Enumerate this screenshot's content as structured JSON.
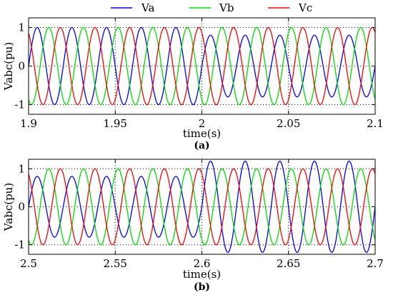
{
  "legend": {
    "placement": "top-center",
    "entries": [
      {
        "name": "Va",
        "color": "#0000ff"
      },
      {
        "name": "Vb",
        "color": "#00dd00"
      },
      {
        "name": "Vc",
        "color": "#ff0000"
      }
    ]
  },
  "chart_data": [
    {
      "type": "line",
      "panel_label": "(a)",
      "xlabel": "time(s)",
      "ylabel": "Vabc(pu)",
      "xlim": [
        1.9,
        2.1
      ],
      "ylim": [
        -1.25,
        1.25
      ],
      "xticks": [
        1.9,
        1.95,
        2,
        2.05,
        2.1
      ],
      "xtick_labels": [
        "1.9",
        "1.95",
        "2",
        "2.05",
        "2.1"
      ],
      "yticks": [
        -1,
        0,
        1
      ],
      "ytick_labels": [
        "-1",
        "0",
        "1"
      ],
      "grid": true,
      "frequency_hz": 50,
      "event_time": 2.0,
      "series": [
        {
          "name": "Va",
          "phase_deg": 0,
          "amplitude_before": 1.0,
          "amplitude_after": 0.8
        },
        {
          "name": "Vb",
          "phase_deg": -120,
          "amplitude_before": 1.0,
          "amplitude_after": 1.0
        },
        {
          "name": "Vc",
          "phase_deg": 120,
          "amplitude_before": 1.0,
          "amplitude_after": 1.0
        }
      ]
    },
    {
      "type": "line",
      "panel_label": "(b)",
      "xlabel": "time(s)",
      "ylabel": "Vabc(pu)",
      "xlim": [
        2.5,
        2.7
      ],
      "ylim": [
        -1.25,
        1.25
      ],
      "xticks": [
        2.5,
        2.55,
        2.6,
        2.65,
        2.7
      ],
      "xtick_labels": [
        "2.5",
        "2.55",
        "2.6",
        "2.65",
        "2.7"
      ],
      "yticks": [
        -1,
        0,
        1
      ],
      "ytick_labels": [
        "-1",
        "0",
        "1"
      ],
      "grid": true,
      "frequency_hz": 50,
      "event_time": 2.6,
      "series": [
        {
          "name": "Va",
          "phase_deg": 0,
          "amplitude_before": 0.8,
          "amplitude_after": 1.2
        },
        {
          "name": "Vb",
          "phase_deg": -120,
          "amplitude_before": 1.0,
          "amplitude_after": 1.0
        },
        {
          "name": "Vc",
          "phase_deg": 120,
          "amplitude_before": 1.0,
          "amplitude_after": 1.0
        }
      ]
    }
  ]
}
